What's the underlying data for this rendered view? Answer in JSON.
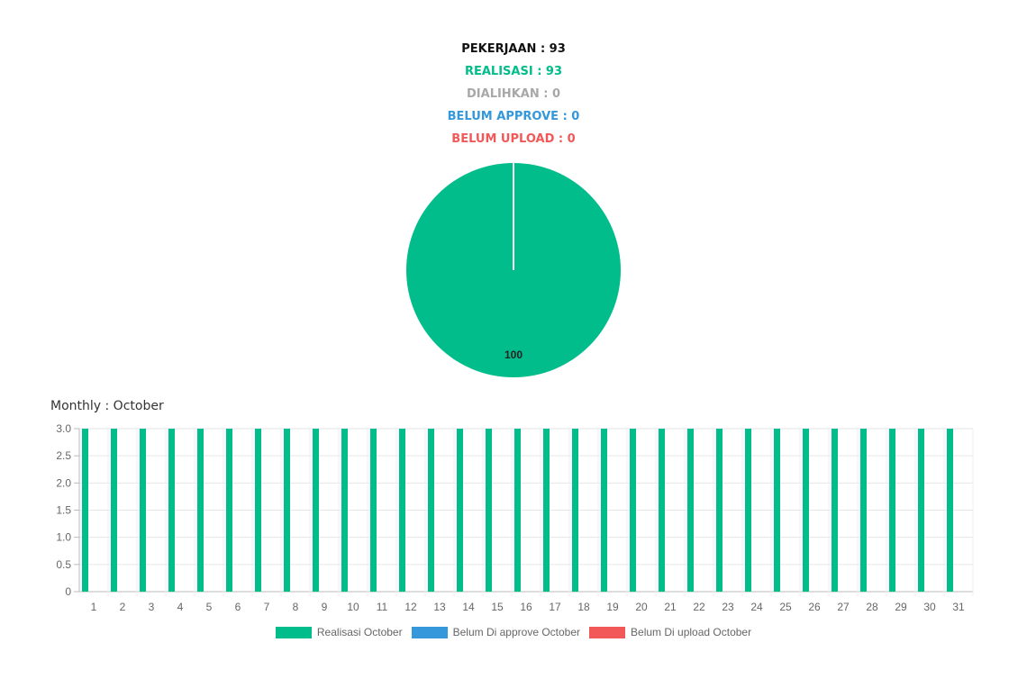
{
  "summary": {
    "lines": [
      {
        "text": "PEKERJAAN : 93",
        "color": "#111111"
      },
      {
        "text": "REALISASI : 93",
        "color": "#00BD8B"
      },
      {
        "text": "DIALIHKAN : 0",
        "color": "#A8A8A8"
      },
      {
        "text": "BELUM APPROVE : 0",
        "color": "#3498DB"
      },
      {
        "text": "BELUM UPLOAD : 0",
        "color": "#F25858"
      }
    ]
  },
  "monthly_title": "Monthly : October",
  "chart_data": [
    {
      "type": "pie",
      "slices": [
        {
          "value": 100,
          "color": "#00BD8B"
        }
      ],
      "data_labels": [
        "100"
      ]
    },
    {
      "type": "bar",
      "categories": [
        "1",
        "2",
        "3",
        "4",
        "5",
        "6",
        "7",
        "8",
        "9",
        "10",
        "11",
        "12",
        "13",
        "14",
        "15",
        "16",
        "17",
        "18",
        "19",
        "20",
        "21",
        "22",
        "23",
        "24",
        "25",
        "26",
        "27",
        "28",
        "29",
        "30",
        "31"
      ],
      "series": [
        {
          "name": "Realisasi October",
          "color": "#00BD8B",
          "values": [
            3,
            3,
            3,
            3,
            3,
            3,
            3,
            3,
            3,
            3,
            3,
            3,
            3,
            3,
            3,
            3,
            3,
            3,
            3,
            3,
            3,
            3,
            3,
            3,
            3,
            3,
            3,
            3,
            3,
            3,
            3
          ]
        },
        {
          "name": "Belum Di approve October",
          "color": "#3498DB",
          "values": [
            0,
            0,
            0,
            0,
            0,
            0,
            0,
            0,
            0,
            0,
            0,
            0,
            0,
            0,
            0,
            0,
            0,
            0,
            0,
            0,
            0,
            0,
            0,
            0,
            0,
            0,
            0,
            0,
            0,
            0,
            0
          ]
        },
        {
          "name": "Belum Di upload October",
          "color": "#F25858",
          "values": [
            0,
            0,
            0,
            0,
            0,
            0,
            0,
            0,
            0,
            0,
            0,
            0,
            0,
            0,
            0,
            0,
            0,
            0,
            0,
            0,
            0,
            0,
            0,
            0,
            0,
            0,
            0,
            0,
            0,
            0,
            0
          ]
        }
      ],
      "ylim": [
        0,
        3
      ],
      "yticks": [
        "0",
        "0.5",
        "1.0",
        "1.5",
        "2.0",
        "2.5",
        "3.0"
      ],
      "grid": true,
      "legend": "bottom"
    }
  ]
}
